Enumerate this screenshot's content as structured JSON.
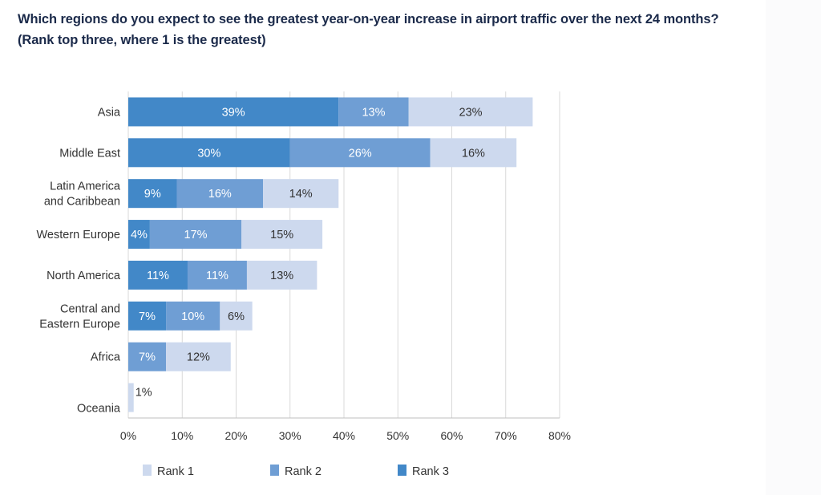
{
  "title_line1": "Which regions do you expect to see the greatest year-on-year increase in airport traffic over the next 24 months?",
  "title_line2": "(Rank top three, where 1 is the greatest)",
  "chart_data": {
    "type": "bar",
    "orientation": "horizontal",
    "stacked": true,
    "title": "Which regions do you expect to see the greatest year-on-year increase in airport traffic over the next 24 months? (Rank top three, where 1 is the greatest)",
    "categories": [
      [
        "Asia"
      ],
      [
        "Middle East"
      ],
      [
        "Latin America",
        "and Caribbean"
      ],
      [
        "Western Europe"
      ],
      [
        "North America"
      ],
      [
        "Central and",
        "Eastern Europe"
      ],
      [
        "Africa"
      ],
      [
        "Oceania"
      ]
    ],
    "stack_order": [
      "Rank 3",
      "Rank 2",
      "Rank 1"
    ],
    "series": [
      {
        "name": "Rank 3",
        "color": "#4288c8",
        "label_color": "#ffffff",
        "values": [
          39,
          30,
          9,
          4,
          11,
          7,
          0,
          0
        ]
      },
      {
        "name": "Rank 2",
        "color": "#6f9ed4",
        "label_color": "#ffffff",
        "values": [
          13,
          26,
          16,
          17,
          11,
          10,
          7,
          0
        ]
      },
      {
        "name": "Rank 1",
        "color": "#cdd9ee",
        "label_color": "#333333",
        "values": [
          23,
          16,
          14,
          15,
          13,
          6,
          12,
          1
        ]
      }
    ],
    "xlabel": "",
    "ylabel": "",
    "xlim": [
      0,
      80
    ],
    "xticks": [
      0,
      10,
      20,
      30,
      40,
      50,
      60,
      70,
      80
    ],
    "tick_suffix": "%",
    "grid": true,
    "legend": {
      "position": "bottom",
      "entries": [
        {
          "name": "Rank 1",
          "color": "#cdd9ee"
        },
        {
          "name": "Rank 2",
          "color": "#6f9ed4"
        },
        {
          "name": "Rank 3",
          "color": "#4288c8"
        }
      ]
    }
  }
}
